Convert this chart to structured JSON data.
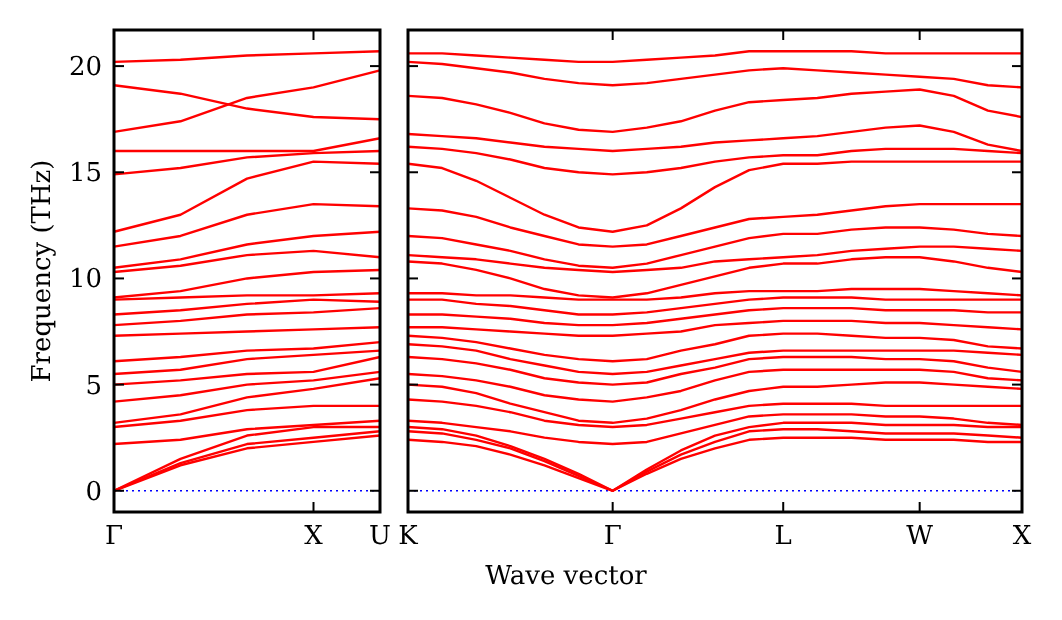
{
  "chart_data": [
    {
      "type": "line",
      "ylabel": "Frequency (THz)",
      "categories": [
        "Γ",
        null,
        null,
        "X",
        "U"
      ],
      "ylim": [
        -1,
        21.7
      ],
      "yticks": [
        0,
        5,
        10,
        15,
        20
      ],
      "grid": false,
      "line_style": "solid",
      "ref_lines": [
        {
          "axis": "y",
          "value": 0,
          "color": "#0000ff",
          "line_style": "dotted"
        }
      ],
      "series": [
        {
          "color": "#ff0000",
          "values": [
            0,
            1.2,
            2.0,
            2.3,
            2.6
          ]
        },
        {
          "color": "#ff0000",
          "values": [
            0,
            1.3,
            2.2,
            2.5,
            2.8
          ]
        },
        {
          "color": "#ff0000",
          "values": [
            0,
            1.5,
            2.6,
            3.0,
            3.0
          ]
        },
        {
          "color": "#ff0000",
          "values": [
            2.2,
            2.4,
            2.9,
            3.1,
            3.3
          ]
        },
        {
          "color": "#ff0000",
          "values": [
            3.0,
            3.3,
            3.8,
            4.0,
            4.0
          ]
        },
        {
          "color": "#ff0000",
          "values": [
            3.2,
            3.6,
            4.4,
            4.8,
            5.3
          ]
        },
        {
          "color": "#ff0000",
          "values": [
            4.2,
            4.5,
            5.0,
            5.2,
            5.6
          ]
        },
        {
          "color": "#ff0000",
          "values": [
            5.0,
            5.2,
            5.5,
            5.6,
            6.3
          ]
        },
        {
          "color": "#ff0000",
          "values": [
            5.5,
            5.7,
            6.2,
            6.4,
            6.6
          ]
        },
        {
          "color": "#ff0000",
          "values": [
            6.1,
            6.3,
            6.6,
            6.7,
            7.0
          ]
        },
        {
          "color": "#ff0000",
          "values": [
            7.3,
            7.4,
            7.5,
            7.6,
            7.7
          ]
        },
        {
          "color": "#ff0000",
          "values": [
            7.8,
            8.0,
            8.3,
            8.4,
            8.6
          ]
        },
        {
          "color": "#ff0000",
          "values": [
            8.3,
            8.5,
            8.8,
            9.0,
            8.9
          ]
        },
        {
          "color": "#ff0000",
          "values": [
            9.0,
            9.1,
            9.2,
            9.2,
            9.3
          ]
        },
        {
          "color": "#ff0000",
          "values": [
            9.1,
            9.4,
            10.0,
            10.3,
            10.4
          ]
        },
        {
          "color": "#ff0000",
          "values": [
            10.3,
            10.6,
            11.1,
            11.3,
            11.0
          ]
        },
        {
          "color": "#ff0000",
          "values": [
            10.5,
            10.9,
            11.6,
            12.0,
            12.2
          ]
        },
        {
          "color": "#ff0000",
          "values": [
            11.5,
            12.0,
            13.0,
            13.5,
            13.4
          ]
        },
        {
          "color": "#ff0000",
          "values": [
            12.2,
            13.0,
            14.7,
            15.5,
            15.4
          ]
        },
        {
          "color": "#ff0000",
          "values": [
            14.9,
            15.2,
            15.7,
            15.9,
            16.0
          ]
        },
        {
          "color": "#ff0000",
          "values": [
            16.0,
            16.0,
            16.0,
            16.0,
            16.6
          ]
        },
        {
          "color": "#ff0000",
          "values": [
            16.9,
            17.4,
            18.5,
            19.0,
            19.8
          ]
        },
        {
          "color": "#ff0000",
          "values": [
            19.1,
            18.7,
            18.0,
            17.6,
            17.5
          ]
        },
        {
          "color": "#ff0000",
          "values": [
            20.2,
            20.3,
            20.5,
            20.6,
            20.7
          ]
        }
      ]
    },
    {
      "type": "line",
      "xlabel": "Wave vector",
      "tick_labels": "x",
      "categories": [
        "K",
        null,
        null,
        null,
        null,
        null,
        "Γ",
        null,
        null,
        null,
        null,
        "L",
        null,
        null,
        null,
        "W",
        null,
        null,
        "X"
      ],
      "ylim": [
        -1,
        21.7
      ],
      "yticks": [
        0,
        5,
        10,
        15,
        20
      ],
      "grid": false,
      "line_style": "solid",
      "ref_lines": [
        {
          "axis": "y",
          "value": 0,
          "color": "#0000ff",
          "line_style": "dotted"
        }
      ],
      "series": [
        {
          "color": "#ff0000",
          "values": [
            2.4,
            2.3,
            2.1,
            1.7,
            1.2,
            0.6,
            0,
            0.8,
            1.5,
            2.0,
            2.4,
            2.5,
            2.5,
            2.5,
            2.4,
            2.4,
            2.4,
            2.3,
            2.3
          ]
        },
        {
          "color": "#ff0000",
          "values": [
            2.8,
            2.7,
            2.4,
            2.0,
            1.4,
            0.7,
            0,
            0.9,
            1.7,
            2.3,
            2.8,
            2.9,
            2.9,
            2.8,
            2.7,
            2.7,
            2.7,
            2.6,
            2.5
          ]
        },
        {
          "color": "#ff0000",
          "values": [
            3.0,
            2.9,
            2.6,
            2.1,
            1.5,
            0.8,
            0,
            1.0,
            1.9,
            2.6,
            3.0,
            3.2,
            3.2,
            3.2,
            3.1,
            3.1,
            3.1,
            3.0,
            3.0
          ]
        },
        {
          "color": "#ff0000",
          "values": [
            3.3,
            3.2,
            3.0,
            2.8,
            2.5,
            2.3,
            2.2,
            2.3,
            2.7,
            3.1,
            3.5,
            3.6,
            3.6,
            3.6,
            3.5,
            3.5,
            3.4,
            3.2,
            3.1
          ]
        },
        {
          "color": "#ff0000",
          "values": [
            4.3,
            4.2,
            4.0,
            3.7,
            3.3,
            3.1,
            3.0,
            3.1,
            3.4,
            3.7,
            4.0,
            4.1,
            4.1,
            4.1,
            4.0,
            4.0,
            4.0,
            4.0,
            4.0
          ]
        },
        {
          "color": "#ff0000",
          "values": [
            5.0,
            4.9,
            4.6,
            4.1,
            3.7,
            3.3,
            3.2,
            3.4,
            3.8,
            4.3,
            4.7,
            4.9,
            4.9,
            5.0,
            5.1,
            5.1,
            5.0,
            4.9,
            4.8
          ]
        },
        {
          "color": "#ff0000",
          "values": [
            5.5,
            5.4,
            5.2,
            4.9,
            4.5,
            4.3,
            4.2,
            4.4,
            4.7,
            5.2,
            5.6,
            5.7,
            5.7,
            5.7,
            5.7,
            5.7,
            5.6,
            5.3,
            5.2
          ]
        },
        {
          "color": "#ff0000",
          "values": [
            6.3,
            6.2,
            6.0,
            5.7,
            5.3,
            5.1,
            5.0,
            5.1,
            5.5,
            5.8,
            6.2,
            6.3,
            6.3,
            6.3,
            6.2,
            6.2,
            6.1,
            5.8,
            5.6
          ]
        },
        {
          "color": "#ff0000",
          "values": [
            6.9,
            6.8,
            6.6,
            6.2,
            5.9,
            5.6,
            5.5,
            5.6,
            5.9,
            6.2,
            6.5,
            6.6,
            6.6,
            6.6,
            6.6,
            6.6,
            6.6,
            6.5,
            6.4
          ]
        },
        {
          "color": "#ff0000",
          "values": [
            7.3,
            7.2,
            7.0,
            6.7,
            6.4,
            6.2,
            6.1,
            6.2,
            6.6,
            6.9,
            7.3,
            7.4,
            7.4,
            7.3,
            7.2,
            7.2,
            7.1,
            6.8,
            6.7
          ]
        },
        {
          "color": "#ff0000",
          "values": [
            7.7,
            7.7,
            7.6,
            7.5,
            7.4,
            7.3,
            7.3,
            7.4,
            7.5,
            7.8,
            7.9,
            8.0,
            8.0,
            8.0,
            7.9,
            7.9,
            7.8,
            7.7,
            7.6
          ]
        },
        {
          "color": "#ff0000",
          "values": [
            8.3,
            8.3,
            8.2,
            8.1,
            7.9,
            7.8,
            7.8,
            7.9,
            8.1,
            8.3,
            8.5,
            8.6,
            8.6,
            8.6,
            8.5,
            8.5,
            8.5,
            8.4,
            8.4
          ]
        },
        {
          "color": "#ff0000",
          "values": [
            9.0,
            9.0,
            8.8,
            8.7,
            8.5,
            8.3,
            8.3,
            8.4,
            8.6,
            8.8,
            9.0,
            9.1,
            9.1,
            9.1,
            9.0,
            9.0,
            9.0,
            9.0,
            9.0
          ]
        },
        {
          "color": "#ff0000",
          "values": [
            9.3,
            9.3,
            9.2,
            9.2,
            9.1,
            9.0,
            9.0,
            9.0,
            9.1,
            9.3,
            9.4,
            9.4,
            9.4,
            9.5,
            9.5,
            9.5,
            9.4,
            9.3,
            9.2
          ]
        },
        {
          "color": "#ff0000",
          "values": [
            10.8,
            10.7,
            10.4,
            10.0,
            9.5,
            9.2,
            9.1,
            9.3,
            9.7,
            10.1,
            10.5,
            10.7,
            10.7,
            10.9,
            11.0,
            11.0,
            10.8,
            10.5,
            10.3
          ]
        },
        {
          "color": "#ff0000",
          "values": [
            11.1,
            11.0,
            10.9,
            10.7,
            10.5,
            10.4,
            10.3,
            10.4,
            10.5,
            10.8,
            10.9,
            11.0,
            11.1,
            11.3,
            11.4,
            11.5,
            11.5,
            11.4,
            11.3
          ]
        },
        {
          "color": "#ff0000",
          "values": [
            12.0,
            11.9,
            11.6,
            11.3,
            10.9,
            10.6,
            10.5,
            10.7,
            11.1,
            11.5,
            11.9,
            12.1,
            12.1,
            12.3,
            12.4,
            12.4,
            12.3,
            12.1,
            12.0
          ]
        },
        {
          "color": "#ff0000",
          "values": [
            13.3,
            13.2,
            12.9,
            12.4,
            12.0,
            11.6,
            11.5,
            11.6,
            12.0,
            12.4,
            12.8,
            12.9,
            13.0,
            13.2,
            13.4,
            13.5,
            13.5,
            13.5,
            13.5
          ]
        },
        {
          "color": "#ff0000",
          "values": [
            15.4,
            15.2,
            14.6,
            13.8,
            13.0,
            12.4,
            12.2,
            12.5,
            13.3,
            14.3,
            15.1,
            15.4,
            15.4,
            15.5,
            15.5,
            15.5,
            15.5,
            15.5,
            15.5
          ]
        },
        {
          "color": "#ff0000",
          "values": [
            16.2,
            16.1,
            15.9,
            15.6,
            15.2,
            15.0,
            14.9,
            15.0,
            15.2,
            15.5,
            15.7,
            15.8,
            15.8,
            16.0,
            16.1,
            16.1,
            16.1,
            16.0,
            15.9
          ]
        },
        {
          "color": "#ff0000",
          "values": [
            16.8,
            16.7,
            16.6,
            16.4,
            16.2,
            16.1,
            16.0,
            16.1,
            16.2,
            16.4,
            16.5,
            16.6,
            16.7,
            16.9,
            17.1,
            17.2,
            16.9,
            16.3,
            16.0
          ]
        },
        {
          "color": "#ff0000",
          "values": [
            18.6,
            18.5,
            18.2,
            17.8,
            17.3,
            17.0,
            16.9,
            17.1,
            17.4,
            17.9,
            18.3,
            18.4,
            18.5,
            18.7,
            18.8,
            18.9,
            18.6,
            17.9,
            17.6
          ]
        },
        {
          "color": "#ff0000",
          "values": [
            20.2,
            20.1,
            19.9,
            19.7,
            19.4,
            19.2,
            19.1,
            19.2,
            19.4,
            19.6,
            19.8,
            19.9,
            19.8,
            19.7,
            19.6,
            19.5,
            19.4,
            19.1,
            19.0
          ]
        },
        {
          "color": "#ff0000",
          "values": [
            20.6,
            20.6,
            20.5,
            20.4,
            20.3,
            20.2,
            20.2,
            20.3,
            20.4,
            20.5,
            20.7,
            20.7,
            20.7,
            20.7,
            20.6,
            20.6,
            20.6,
            20.6,
            20.6
          ]
        }
      ]
    }
  ]
}
